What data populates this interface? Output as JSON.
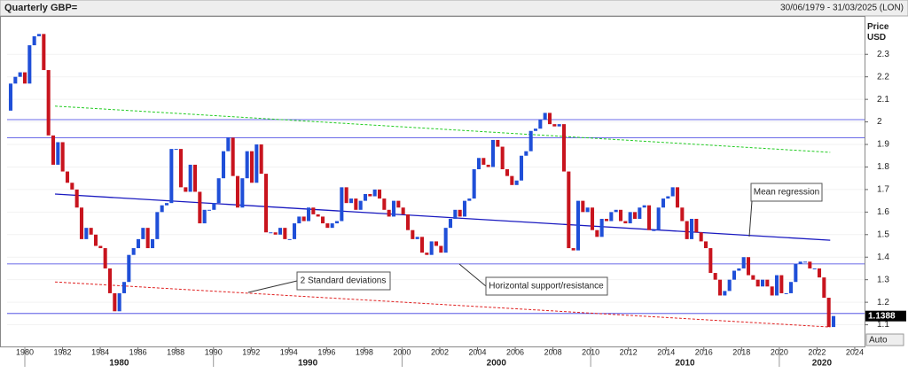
{
  "chart_data": {
    "type": "candlestick",
    "title": "Quarterly GBP=",
    "subtitle": "30/06/1979 - 31/03/2025 (LON)",
    "y_axis_label": "Price USD",
    "last_price": 1.1388,
    "scale_mode": "Auto",
    "up_color": "#1f4fd8",
    "down_color": "#c8141e",
    "close": [
      2.05,
      2.17,
      2.2,
      2.22,
      2.17,
      2.34,
      2.38,
      2.39,
      2.23,
      1.94,
      1.81,
      1.91,
      1.78,
      1.73,
      1.7,
      1.62,
      1.48,
      1.53,
      1.5,
      1.45,
      1.44,
      1.35,
      1.24,
      1.16,
      1.24,
      1.29,
      1.41,
      1.44,
      1.48,
      1.53,
      1.44,
      1.48,
      1.6,
      1.63,
      1.64,
      1.88,
      1.88,
      1.71,
      1.69,
      1.81,
      1.69,
      1.55,
      1.61,
      1.61,
      1.64,
      1.75,
      1.87,
      1.93,
      1.76,
      1.62,
      1.75,
      1.87,
      1.73,
      1.9,
      1.77,
      1.51,
      1.51,
      1.5,
      1.53,
      1.48,
      1.48,
      1.55,
      1.58,
      1.56,
      1.62,
      1.59,
      1.58,
      1.55,
      1.53,
      1.55,
      1.56,
      1.71,
      1.64,
      1.66,
      1.61,
      1.65,
      1.68,
      1.67,
      1.7,
      1.66,
      1.61,
      1.58,
      1.65,
      1.62,
      1.59,
      1.52,
      1.48,
      1.49,
      1.42,
      1.41,
      1.47,
      1.45,
      1.42,
      1.53,
      1.57,
      1.61,
      1.58,
      1.65,
      1.66,
      1.79,
      1.84,
      1.81,
      1.8,
      1.92,
      1.89,
      1.79,
      1.76,
      1.72,
      1.74,
      1.85,
      1.87,
      1.96,
      1.97,
      2.01,
      2.04,
      1.99,
      1.98,
      1.99,
      1.78,
      1.44,
      1.43,
      1.65,
      1.6,
      1.62,
      1.52,
      1.49,
      1.57,
      1.56,
      1.6,
      1.61,
      1.56,
      1.55,
      1.6,
      1.57,
      1.62,
      1.63,
      1.52,
      1.52,
      1.62,
      1.66,
      1.67,
      1.71,
      1.62,
      1.56,
      1.48,
      1.57,
      1.51,
      1.47,
      1.44,
      1.33,
      1.3,
      1.23,
      1.25,
      1.3,
      1.34,
      1.35,
      1.4,
      1.32,
      1.3,
      1.27,
      1.3,
      1.27,
      1.23,
      1.32,
      1.24,
      1.24,
      1.29,
      1.37,
      1.38,
      1.38,
      1.35,
      1.35,
      1.31,
      1.22,
      1.09,
      1.1388
    ],
    "xlim": [
      1979.06,
      2024.52
    ],
    "xticks": [
      1980,
      1982,
      1984,
      1986,
      1988,
      1990,
      1992,
      1994,
      1996,
      1998,
      2000,
      2002,
      2004,
      2006,
      2008,
      2010,
      2012,
      2014,
      2016,
      2018,
      2020,
      2022,
      2024
    ],
    "decades": [
      1980,
      1990,
      2000,
      2010,
      2020
    ],
    "ylim": [
      1.0,
      2.47
    ],
    "yticks": [
      1.1,
      1.2,
      1.3,
      1.4,
      1.5,
      1.6,
      1.7,
      1.8,
      1.9,
      2,
      2.1,
      2.2,
      2.3
    ],
    "hlines": [
      2.01,
      1.93,
      1.37,
      1.15
    ],
    "hline_color": "#3a3ae0",
    "trend_lines": [
      {
        "x": [
          1981.6,
          2022.7
        ],
        "y": [
          2.07,
          1.865
        ],
        "color": "#22cc22",
        "dash": true
      },
      {
        "x": [
          1981.6,
          2022.7
        ],
        "y": [
          1.68,
          1.475
        ],
        "color": "#1a1ac0",
        "dash": false
      },
      {
        "x": [
          1981.6,
          2022.7
        ],
        "y": [
          1.29,
          1.09
        ],
        "color": "#e02020",
        "dash": true
      }
    ],
    "annotations": [
      "Mean regression",
      "2 Standard deviations",
      "Horizontal support/resistance"
    ]
  }
}
